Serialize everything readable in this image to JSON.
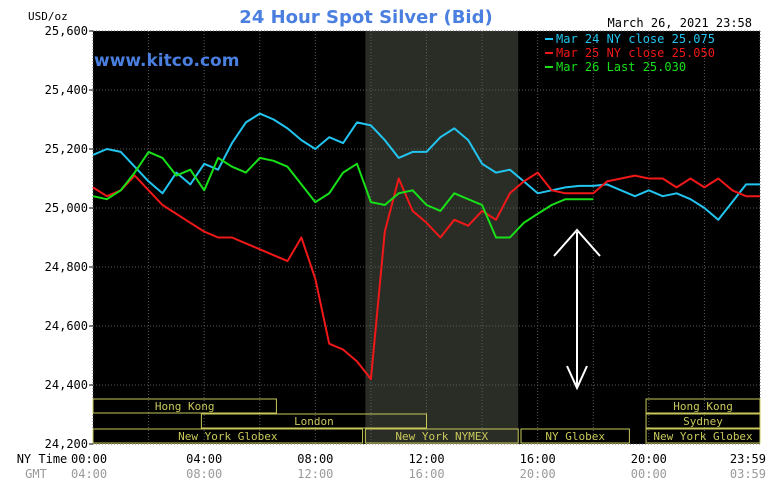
{
  "chart_data": {
    "type": "line",
    "title": "24 Hour Spot Silver (Bid)",
    "timestamp": "March 26, 2021 23:58",
    "watermark": "www.kitco.com",
    "y_unit_label": "USD/oz",
    "ylim": [
      24200,
      25600
    ],
    "y_ticks": [
      "24,200",
      "24,400",
      "24,600",
      "24,800",
      "25,000",
      "25,200",
      "25,400",
      "25,600"
    ],
    "x_row_labels": [
      "NY Time",
      "GMT"
    ],
    "x_ticks_ny": [
      "00:00",
      "04:00",
      "08:00",
      "12:00",
      "16:00",
      "20:00",
      "23:59"
    ],
    "x_ticks_gmt": [
      "04:00",
      "08:00",
      "12:00",
      "16:00",
      "20:00",
      "00:00",
      "03:59"
    ],
    "grid": true,
    "legend_position": "top-right",
    "colors": {
      "background": "#000000",
      "title": "#4a7fe0",
      "watermark": "#4a7fe0",
      "axis_text": "#ffffff",
      "gmt_text": "#9a9a9a",
      "grid": "#5a5a5a",
      "session_band": "#2a2d26",
      "session_box": "#c8c85a"
    },
    "series": [
      {
        "name": "Mar 24 NY close 25.075",
        "color": "#22c4f0",
        "x": [
          0,
          0.5,
          1,
          1.5,
          2,
          2.5,
          3,
          3.5,
          4,
          4.5,
          5,
          5.5,
          6,
          6.5,
          7,
          7.5,
          8,
          8.5,
          9,
          9.5,
          10,
          10.5,
          11,
          11.5,
          12,
          12.5,
          13,
          13.5,
          14,
          14.5,
          15,
          15.5,
          16,
          16.5,
          17,
          17.5,
          18,
          18.5,
          19,
          19.5,
          20,
          20.5,
          21,
          21.5,
          22,
          22.5,
          23,
          23.5,
          24
        ],
        "y": [
          25180,
          25200,
          25190,
          25140,
          25090,
          25050,
          25120,
          25080,
          25150,
          25130,
          25220,
          25290,
          25320,
          25300,
          25270,
          25230,
          25200,
          25240,
          25220,
          25290,
          25280,
          25230,
          25170,
          25190,
          25190,
          25240,
          25270,
          25230,
          25150,
          25120,
          25130,
          25090,
          25050,
          25060,
          25070,
          25075,
          25075,
          25080,
          25060,
          25040,
          25060,
          25040,
          25050,
          25030,
          25000,
          24960,
          25020,
          25080,
          25080
        ]
      },
      {
        "name": "Mar 25 NY close 25.050",
        "color": "#f01818",
        "x": [
          0,
          0.5,
          1,
          1.5,
          2,
          2.5,
          3,
          3.5,
          4,
          4.5,
          5,
          5.5,
          6,
          6.5,
          7,
          7.5,
          8,
          8.5,
          9,
          9.5,
          10,
          10.5,
          11,
          11.5,
          12,
          12.5,
          13,
          13.5,
          14,
          14.5,
          15,
          15.5,
          16,
          16.5,
          17,
          17.5,
          18,
          18.5,
          19,
          19.5,
          20,
          20.5,
          21,
          21.5,
          22,
          22.5,
          23,
          23.5,
          24
        ],
        "y": [
          25070,
          25040,
          25060,
          25110,
          25060,
          25010,
          24980,
          24950,
          24920,
          24900,
          24900,
          24880,
          24860,
          24840,
          24820,
          24900,
          24760,
          24540,
          24520,
          24480,
          24420,
          24920,
          25100,
          24990,
          24950,
          24900,
          24960,
          24940,
          24990,
          24960,
          25050,
          25090,
          25120,
          25060,
          25050,
          25050,
          25050,
          25090,
          25100,
          25110,
          25100,
          25100,
          25070,
          25100,
          25070,
          25100,
          25060,
          25040,
          25040
        ]
      },
      {
        "name": "Mar 26 Last 25.030",
        "color": "#18e018",
        "x": [
          0,
          0.5,
          1,
          1.5,
          2,
          2.5,
          3,
          3.5,
          4,
          4.5,
          5,
          5.5,
          6,
          6.5,
          7,
          7.5,
          8,
          8.5,
          9,
          9.5,
          10,
          10.5,
          11,
          11.5,
          12,
          12.5,
          13,
          13.5,
          14,
          14.5,
          15,
          15.5,
          16,
          16.5,
          17,
          17.5,
          18
        ],
        "y": [
          25040,
          25030,
          25060,
          25120,
          25190,
          25170,
          25110,
          25130,
          25060,
          25170,
          25140,
          25120,
          25170,
          25160,
          25140,
          25080,
          25020,
          25050,
          25120,
          25150,
          25020,
          25010,
          25050,
          25060,
          25010,
          24990,
          25050,
          25030,
          25010,
          24900,
          24900,
          24950,
          24980,
          25010,
          25030,
          25030,
          25030
        ]
      }
    ],
    "sessions": [
      {
        "label": "Hong Kong",
        "start": 0,
        "end": 6.6,
        "row": 1
      },
      {
        "label": "London",
        "start": 3.9,
        "end": 12,
        "row": 2
      },
      {
        "label": "New York Globex",
        "start": 0,
        "end": 9.7,
        "row": 3
      },
      {
        "label": "New York NYMEX",
        "start": 9.8,
        "end": 15.3,
        "row": 3
      },
      {
        "label": "NY Globex",
        "start": 15.4,
        "end": 19.3,
        "row": 3
      },
      {
        "label": "Hong Kong",
        "start": 19.9,
        "end": 24,
        "row": 1
      },
      {
        "label": "Sydney",
        "start": 19.9,
        "end": 24,
        "row": 2
      },
      {
        "label": "New York Globex",
        "start": 19.9,
        "end": 24,
        "row": 3
      }
    ],
    "highlight_band": {
      "start": 9.8,
      "end": 15.3
    }
  }
}
